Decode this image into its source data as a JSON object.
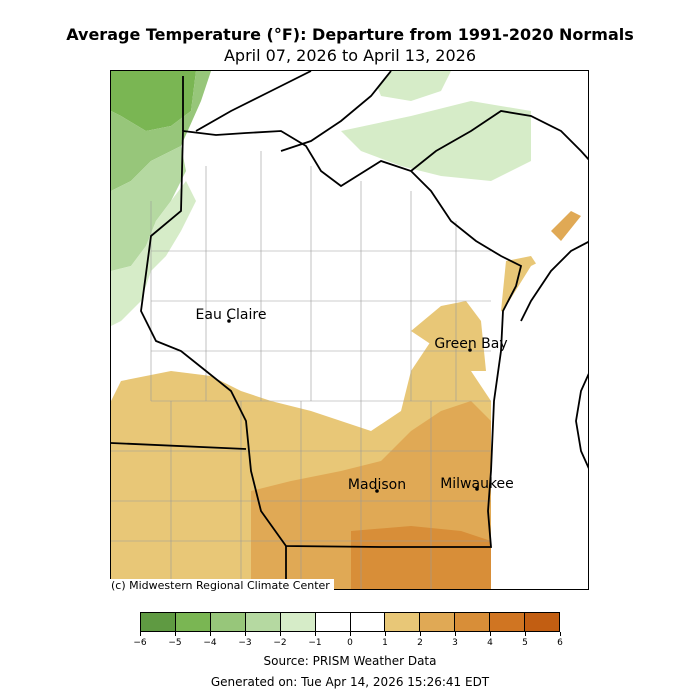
{
  "title": "Average Temperature (°F): Departure from 1991-2020 Normals",
  "subtitle": "April 07, 2026 to April 13, 2026",
  "credit": "(c) Midwestern Regional Climate Center",
  "source": "Source: PRISM Weather Data",
  "generated": "Generated on: Tue Apr 14, 2026 15:26:41 EDT",
  "cities": [
    {
      "name": "Eau Claire"
    },
    {
      "name": "Green Bay"
    },
    {
      "name": "Madison"
    },
    {
      "name": "Milwaukee"
    }
  ],
  "colorbar": {
    "ticks": [
      "−6",
      "−5",
      "−4",
      "−3",
      "−2",
      "−1",
      "0",
      "1",
      "2",
      "3",
      "4",
      "5",
      "6"
    ],
    "colors": [
      "#5f9a42",
      "#7ab653",
      "#97c67a",
      "#b5d9a1",
      "#d6ecc8",
      "#ffffff",
      "#ffffff",
      "#e8c777",
      "#e0a955",
      "#d88e38",
      "#d07522",
      "#c25e12"
    ]
  },
  "legend_colors": {
    "cool_dark": "#7ab653",
    "cool_mid": "#97c67a",
    "cool_light": "#b5d9a1",
    "cool_pale": "#d6ecc8",
    "warm_1": "#e8c777",
    "warm_2": "#e0a955",
    "warm_3": "#d88e38",
    "lake": "#ffffff"
  }
}
